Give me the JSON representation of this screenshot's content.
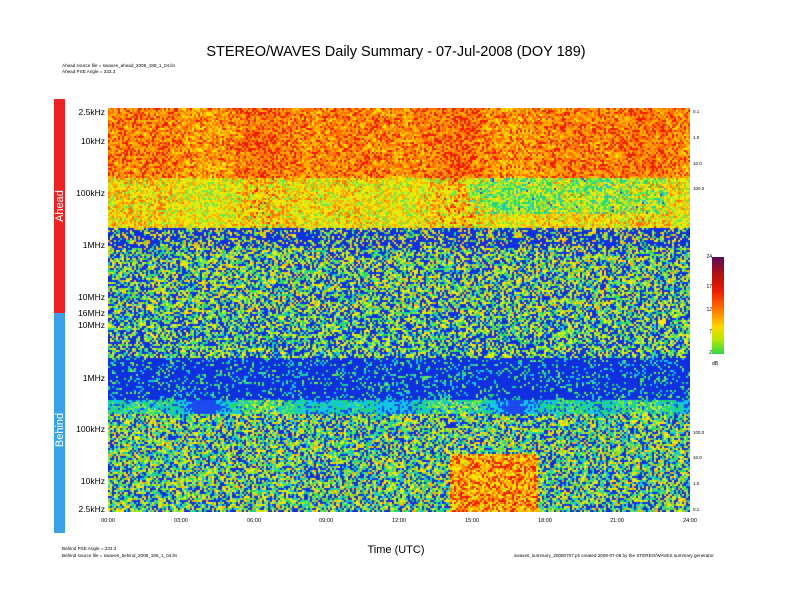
{
  "title": "STEREO/WAVES Daily Summary - 07-Jul-2008 (DOY 189)",
  "header_notes": [
    "Ahead source file = swaves_ahead_2008_189_1_04.lin",
    "Ahead PSE Angle = 333.3"
  ],
  "footer_notes_left": [
    "Behind PSE Angle = 333.3",
    "Behind source file = swaves_behind_2008_189_1_04.lin"
  ],
  "footer_note_right": "swaves_summary_20080707.ps created 2008-07-08 by the STEREO/WAVES summary generator",
  "colors": {
    "ahead": "#ee2222",
    "behind": "#3aa0e8",
    "low": "#1030e0",
    "high": "#ee1a00"
  },
  "chart_data": {
    "type": "heatmap",
    "title": "STEREO/WAVES Daily Summary - 07-Jul-2008 (DOY 189)",
    "xlabel": "Time (UTC)",
    "x_ticks": [
      "00:00",
      "03:00",
      "06:00",
      "09:00",
      "12:00",
      "15:00",
      "18:00",
      "21:00",
      "24:00"
    ],
    "xlim_hours": [
      0,
      24
    ],
    "panels": [
      {
        "name": "Ahead",
        "y_ticks": [
          "2.5kHz",
          "10kHz",
          "100kHz",
          "1MHz",
          "10MHz",
          "16MHz"
        ],
        "right_ticks": [
          "0.1",
          "1.0",
          "10.0",
          "100.0"
        ]
      },
      {
        "name": "Behind",
        "y_ticks": [
          "10MHz",
          "1MHz",
          "100kHz",
          "10kHz",
          "2.5kHz"
        ],
        "right_ticks": [
          "100.0",
          "10.0",
          "1.0",
          "0.1"
        ]
      }
    ],
    "colorbar": {
      "ticks": [
        "24",
        "17",
        "12",
        "7",
        "2"
      ],
      "unit": "dB",
      "range": [
        2,
        24
      ]
    }
  }
}
